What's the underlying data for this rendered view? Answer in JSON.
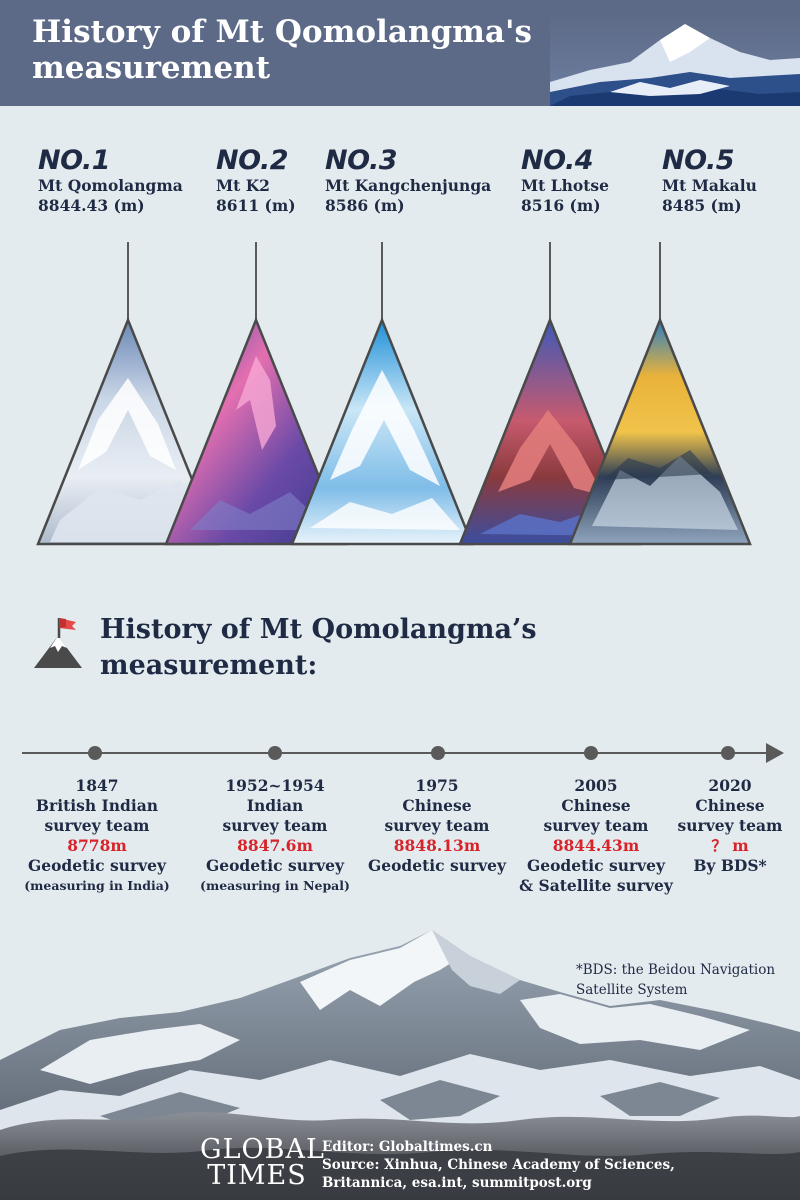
{
  "header": {
    "title": "History of Mt Qomolangma's measurement"
  },
  "peaks": [
    {
      "rank": "NO.1",
      "name": "Mt Qomolangma",
      "height": "8844.43 (m)"
    },
    {
      "rank": "NO.2",
      "name": "Mt K2",
      "height": "8611 (m)"
    },
    {
      "rank": "NO.3",
      "name": "Mt Kangchenjunga",
      "height": "8586 (m)"
    },
    {
      "rank": "NO.4",
      "name": "Mt Lhotse",
      "height": "8516 (m)"
    },
    {
      "rank": "NO.5",
      "name": "Mt Makalu",
      "height": "8485 (m)"
    }
  ],
  "section": {
    "title": "History of  Mt Qomolangma’s measurement:",
    "icon": "flag-on-mountain-icon"
  },
  "timeline": [
    {
      "year": "1847",
      "team_line1": "British Indian",
      "team_line2": "survey team",
      "height": "8778m",
      "method": "Geodetic survey",
      "note": "(measuring in India)"
    },
    {
      "year": "1952~1954",
      "team_line1": "Indian",
      "team_line2": "survey team",
      "height": "8847.6m",
      "method": "Geodetic survey",
      "note": "(measuring in Nepal)"
    },
    {
      "year": "1975",
      "team_line1": "Chinese",
      "team_line2": "survey team",
      "height": "8848.13m",
      "method": "Geodetic survey",
      "note": ""
    },
    {
      "year": "2005",
      "team_line1": "Chinese",
      "team_line2": "survey team",
      "height": "8844.43m",
      "method": "Geodetic survey",
      "note": "& Satellite survey"
    },
    {
      "year": "2020",
      "team_line1": "Chinese",
      "team_line2": "survey team",
      "height": "？ m",
      "method": "By BDS*",
      "note": ""
    }
  ],
  "footnote": "*BDS:  the Beidou Navigation Satellite System",
  "footer": {
    "logo_line1": "GLOBAL",
    "logo_line2": "TIMES",
    "editor": "Editor: Globaltimes.cn",
    "source_line1": "Source: Xinhua, Chinese Academy of Sciences,",
    "source_line2": "Britannica, esa.int, summitpost.org"
  },
  "colors": {
    "header_bg": "#5c6a87",
    "text": "#1f2a44",
    "highlight": "#d8232a",
    "background": "#e3ebee"
  }
}
